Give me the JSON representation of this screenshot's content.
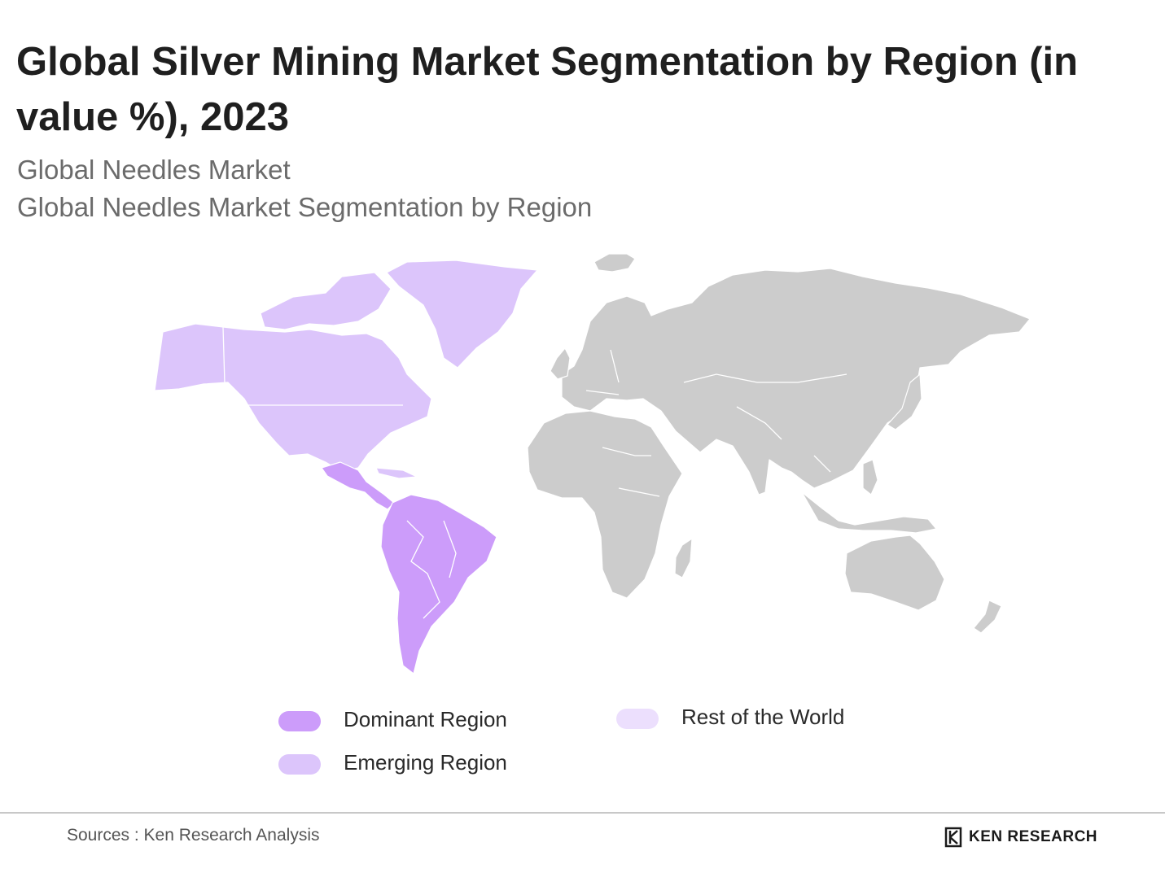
{
  "title": "Global Silver Mining Market Segmentation by Region (in value %), 2023",
  "subtitle_line1": "Global Needles Market",
  "subtitle_line2": "Global Needles Market Segmentation by Region",
  "colors": {
    "dominant": "#cc9cfa",
    "emerging": "#dcc5fb",
    "rest": "#ecdffd",
    "other_land": "#cccccc",
    "border": "#ffffff"
  },
  "legend": [
    {
      "key": "dominant",
      "label": "Dominant Region"
    },
    {
      "key": "emerging",
      "label": "Emerging Region"
    },
    {
      "key": "rest",
      "label": "Rest of the World"
    }
  ],
  "regions": {
    "dominant": "Latin America",
    "emerging": "North America"
  },
  "source": "Sources : Ken Research Analysis",
  "logo_text": "KEN RESEARCH"
}
